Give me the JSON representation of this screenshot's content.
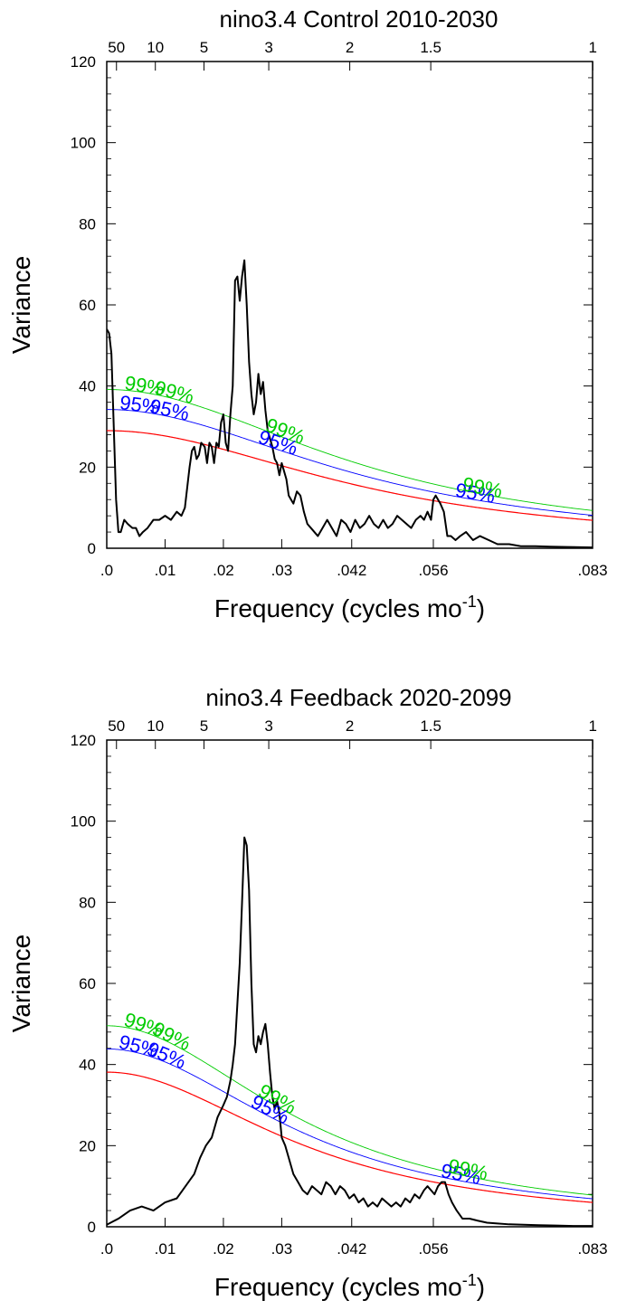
{
  "colors": {
    "spectrum": "#000000",
    "markov": "#ff0000",
    "ci95": "#0000ff",
    "ci99": "#00cc00"
  },
  "chart_data": [
    {
      "type": "line",
      "title": "nino3.4 Control 2010-2030",
      "xlabel": "Frequency (cycles mo",
      "xlabel_sup": "-1",
      "xlabel_close": ")",
      "ylabel": "Variance",
      "xlim": [
        0,
        0.0833
      ],
      "ylim": [
        0,
        120
      ],
      "x_ticks": [
        ".0",
        ".01",
        ".02",
        ".03",
        ".042",
        ".056",
        ".083"
      ],
      "x_tick_values": [
        0,
        0.01,
        0.02,
        0.03,
        0.042,
        0.056,
        0.0833
      ],
      "y_ticks": [
        0,
        20,
        40,
        60,
        80,
        100,
        120
      ],
      "top_ticks": [
        "50",
        "10",
        "5",
        "3",
        "2",
        "1.5",
        "1"
      ],
      "top_tick_values": [
        0.001667,
        0.008333,
        0.016667,
        0.027778,
        0.041667,
        0.055556,
        0.083333
      ],
      "curve_labels": [
        "95%",
        "99%"
      ],
      "spectrum": {
        "x": [
          0,
          0.0004,
          0.0008,
          0.0012,
          0.0016,
          0.002,
          0.0024,
          0.003,
          0.0036,
          0.0044,
          0.005,
          0.0056,
          0.0062,
          0.007,
          0.008,
          0.009,
          0.01,
          0.011,
          0.012,
          0.0128,
          0.0134,
          0.0138,
          0.0142,
          0.0146,
          0.015,
          0.0154,
          0.0158,
          0.0162,
          0.0168,
          0.0172,
          0.0176,
          0.018,
          0.0184,
          0.0188,
          0.0192,
          0.0196,
          0.02,
          0.0204,
          0.0208,
          0.0212,
          0.0216,
          0.022,
          0.0224,
          0.0228,
          0.0232,
          0.0236,
          0.024,
          0.0244,
          0.0248,
          0.0252,
          0.0256,
          0.026,
          0.0264,
          0.0268,
          0.0272,
          0.0276,
          0.028,
          0.0284,
          0.0288,
          0.0292,
          0.0296,
          0.03,
          0.0304,
          0.0308,
          0.0312,
          0.0316,
          0.032,
          0.0326,
          0.0332,
          0.0338,
          0.0344,
          0.035,
          0.0356,
          0.0362,
          0.037,
          0.0378,
          0.0386,
          0.0394,
          0.0402,
          0.041,
          0.0418,
          0.0426,
          0.0434,
          0.0442,
          0.045,
          0.0458,
          0.0466,
          0.0474,
          0.0482,
          0.049,
          0.0498,
          0.0506,
          0.0514,
          0.0522,
          0.053,
          0.0538,
          0.0544,
          0.055,
          0.0556,
          0.056,
          0.0564,
          0.0568,
          0.0572,
          0.0578,
          0.0584,
          0.059,
          0.0598,
          0.0606,
          0.0616,
          0.0628,
          0.064,
          0.0655,
          0.067,
          0.069,
          0.071,
          0.0735,
          0.076,
          0.079,
          0.0833
        ],
        "y": [
          54,
          53,
          48,
          30,
          12,
          4,
          4,
          7,
          6,
          5,
          5,
          3,
          4,
          5,
          7,
          7,
          8,
          7,
          9,
          8,
          10,
          15,
          20,
          24,
          25,
          22,
          23,
          26,
          25,
          21,
          26,
          25,
          21,
          26,
          25,
          31,
          33,
          26,
          24,
          33,
          40,
          66,
          67,
          61,
          67,
          71,
          60,
          46,
          38,
          33,
          36,
          43,
          38,
          41,
          34,
          29,
          27,
          25,
          22,
          21,
          18,
          21,
          19,
          17,
          13,
          12,
          11,
          14,
          13,
          9,
          6,
          5,
          4,
          3,
          5,
          7,
          5,
          3,
          7,
          6,
          4,
          7,
          5,
          6,
          8,
          6,
          5,
          7,
          5,
          6,
          8,
          7,
          6,
          5,
          7,
          8,
          7,
          9,
          7,
          12,
          13,
          12,
          11,
          9,
          3,
          3,
          2,
          3,
          4,
          2,
          3,
          2,
          1,
          1,
          0.5,
          0.5,
          0.4,
          0.3,
          0.2
        ]
      },
      "markov_a": 0.75,
      "factor95": 1.18,
      "factor99": 1.35,
      "labels_high_x": [
        0.0055,
        0.0105
      ],
      "labels_low_x": [
        0.029,
        0.063
      ]
    },
    {
      "type": "line",
      "title": "nino3.4 Feedback 2020-2099",
      "xlabel": "Frequency (cycles mo",
      "xlabel_sup": "-1",
      "xlabel_close": ")",
      "ylabel": "Variance",
      "xlim": [
        0,
        0.0833
      ],
      "ylim": [
        0,
        120
      ],
      "x_ticks": [
        ".0",
        ".01",
        ".02",
        ".03",
        ".042",
        ".056",
        ".083"
      ],
      "x_tick_values": [
        0,
        0.01,
        0.02,
        0.03,
        0.042,
        0.056,
        0.0833
      ],
      "y_ticks": [
        0,
        20,
        40,
        60,
        80,
        100,
        120
      ],
      "top_ticks": [
        "50",
        "10",
        "5",
        "3",
        "2",
        "1.5",
        "1"
      ],
      "top_tick_values": [
        0.001667,
        0.008333,
        0.016667,
        0.027778,
        0.041667,
        0.055556,
        0.083333
      ],
      "curve_labels": [
        "95%",
        "99%"
      ],
      "spectrum": {
        "x": [
          0,
          0.002,
          0.004,
          0.006,
          0.008,
          0.01,
          0.012,
          0.013,
          0.014,
          0.015,
          0.016,
          0.017,
          0.018,
          0.019,
          0.02,
          0.0206,
          0.0212,
          0.0216,
          0.022,
          0.0224,
          0.0228,
          0.0232,
          0.0236,
          0.024,
          0.0244,
          0.0248,
          0.0252,
          0.0256,
          0.026,
          0.0264,
          0.0268,
          0.0272,
          0.0276,
          0.028,
          0.0284,
          0.0288,
          0.0292,
          0.0296,
          0.03,
          0.0306,
          0.0312,
          0.032,
          0.0328,
          0.0336,
          0.0344,
          0.0352,
          0.036,
          0.0368,
          0.0376,
          0.0384,
          0.0392,
          0.04,
          0.0408,
          0.0416,
          0.0424,
          0.0432,
          0.044,
          0.0448,
          0.0456,
          0.0464,
          0.0472,
          0.048,
          0.0488,
          0.0496,
          0.0504,
          0.0512,
          0.052,
          0.0528,
          0.0536,
          0.0544,
          0.055,
          0.0556,
          0.0562,
          0.0568,
          0.0574,
          0.058,
          0.0586,
          0.0592,
          0.06,
          0.061,
          0.0622,
          0.0636,
          0.0652,
          0.067,
          0.069,
          0.0715,
          0.074,
          0.077,
          0.08,
          0.0833
        ],
        "y": [
          0.5,
          2,
          4,
          5,
          4,
          6,
          7,
          9,
          11,
          13,
          17,
          20,
          22,
          27,
          30,
          32,
          36,
          40,
          45,
          55,
          65,
          80,
          96,
          94,
          83,
          60,
          45,
          43,
          47,
          45,
          48,
          50,
          45,
          38,
          32,
          29,
          31,
          28,
          22,
          20,
          17,
          13,
          11,
          9,
          8,
          10,
          9,
          8,
          11,
          10,
          8,
          10,
          9,
          7,
          8,
          6,
          7,
          5,
          6,
          5,
          7,
          6,
          5,
          6,
          5,
          7,
          6,
          8,
          7,
          9,
          10,
          9,
          8,
          10,
          11,
          11,
          8,
          6,
          4,
          2,
          2,
          1.5,
          1,
          0.8,
          0.6,
          0.5,
          0.4,
          0.3,
          0.2,
          0.2
        ]
      },
      "markov_a": 0.8,
      "factor95": 1.15,
      "factor99": 1.3,
      "labels_high_x": [
        0.0052,
        0.0098
      ],
      "labels_low_x": [
        0.0275,
        0.0605
      ]
    }
  ]
}
